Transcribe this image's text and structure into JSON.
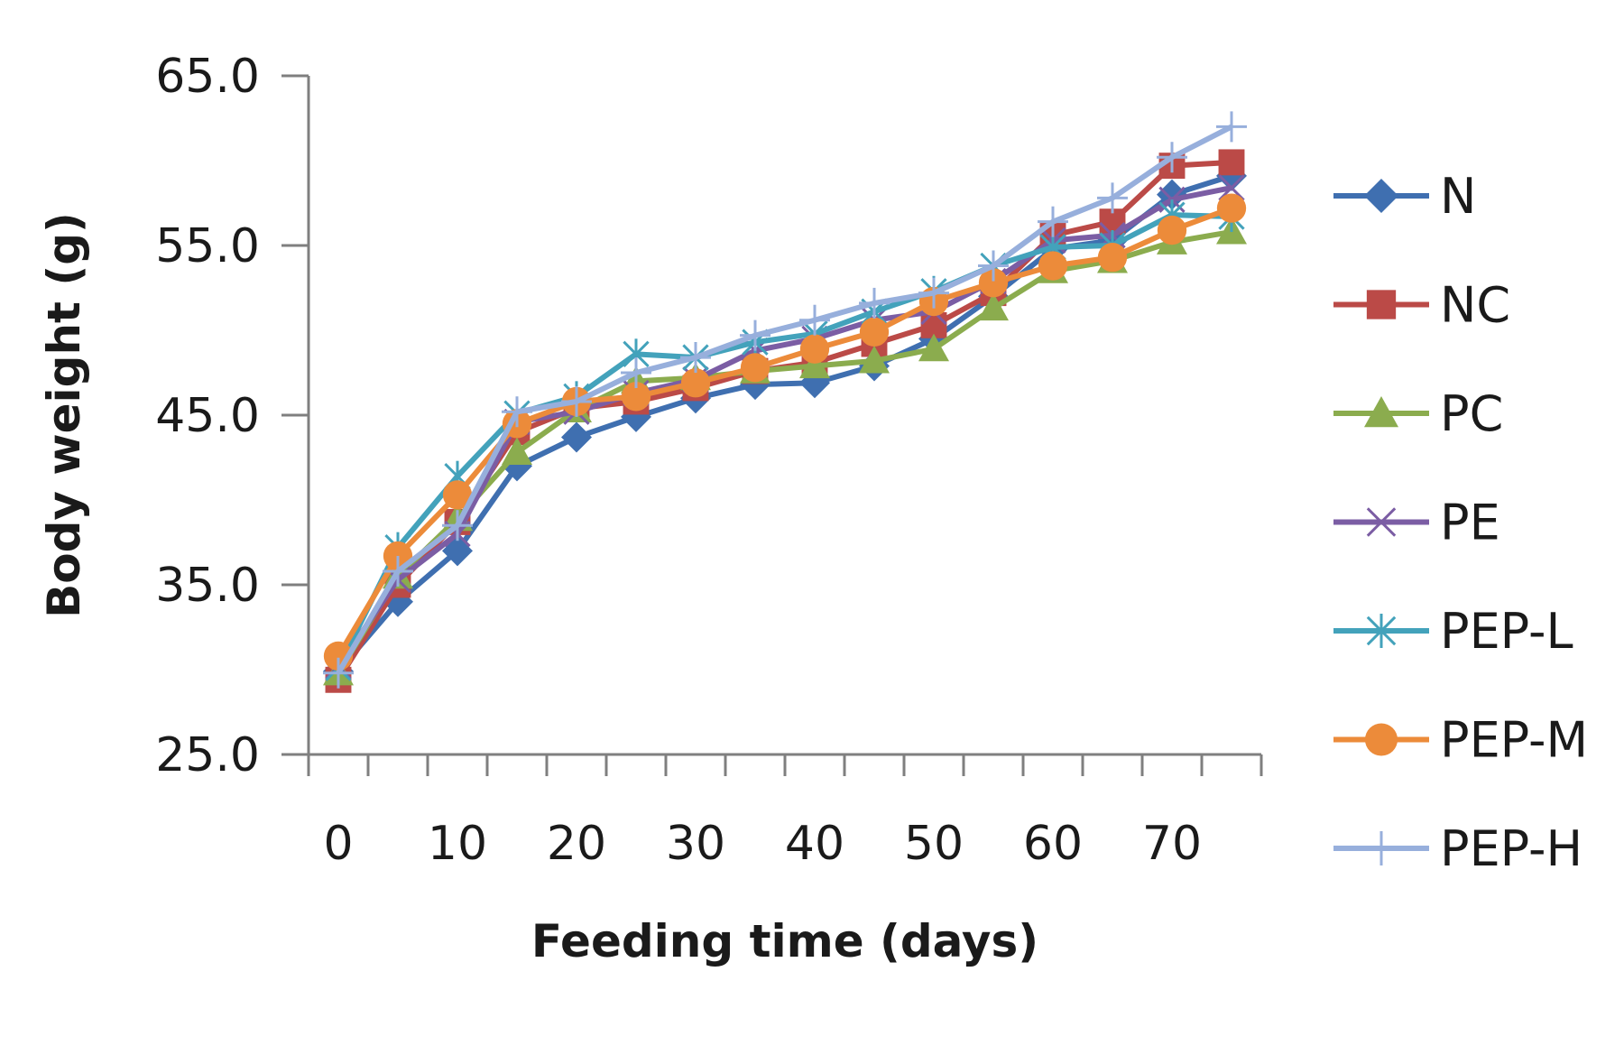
{
  "chart_data": {
    "type": "line",
    "title": "",
    "xlabel": "Feeding time (days)",
    "ylabel": "Body weight (g)",
    "xlim": [
      -2.5,
      77.5
    ],
    "ylim": [
      25.0,
      65.0
    ],
    "x_ticks": [
      "0",
      "10",
      "20",
      "30",
      "40",
      "50",
      "60",
      "70"
    ],
    "y_ticks": [
      "65.0",
      "55.0",
      "45.0",
      "35.0",
      "25.0"
    ],
    "grid": false,
    "legend_position": "right",
    "x": [
      0,
      5,
      10,
      15,
      20,
      25,
      30,
      35,
      40,
      45,
      50,
      55,
      60,
      65,
      70,
      75
    ],
    "series": [
      {
        "name": "N",
        "color": "#3f6fb0",
        "marker": "diamond",
        "values": [
          29.9,
          34.0,
          37.0,
          42.0,
          43.7,
          44.9,
          46.0,
          46.8,
          46.9,
          47.9,
          49.5,
          52.0,
          54.8,
          55.3,
          58.0,
          59.1
        ]
      },
      {
        "name": "NC",
        "color": "#bb4a47",
        "marker": "square",
        "values": [
          29.4,
          35.0,
          38.7,
          44.0,
          45.4,
          45.8,
          46.6,
          47.6,
          48.1,
          49.2,
          50.3,
          52.2,
          55.6,
          56.4,
          59.7,
          59.9
        ]
      },
      {
        "name": "PC",
        "color": "#8bac4e",
        "marker": "triangle",
        "values": [
          29.8,
          35.5,
          38.9,
          42.8,
          45.3,
          47.0,
          47.2,
          47.6,
          47.9,
          48.2,
          48.9,
          51.3,
          53.5,
          54.1,
          55.2,
          55.8
        ]
      },
      {
        "name": "PE",
        "color": "#7b5da4",
        "marker": "x",
        "values": [
          30.2,
          35.3,
          38.0,
          44.6,
          45.2,
          46.3,
          47.1,
          48.8,
          49.5,
          50.6,
          51.1,
          52.9,
          55.3,
          55.6,
          57.7,
          58.4
        ]
      },
      {
        "name": "PEP-L",
        "color": "#43a2bb",
        "marker": "star",
        "values": [
          30.1,
          37.2,
          41.4,
          45.1,
          46.1,
          48.6,
          48.4,
          49.3,
          49.8,
          51.1,
          52.3,
          53.8,
          54.9,
          55.0,
          56.8,
          56.7
        ]
      },
      {
        "name": "PEP-M",
        "color": "#ec8b3a",
        "marker": "circle",
        "values": [
          30.8,
          36.7,
          40.3,
          44.5,
          45.8,
          46.1,
          46.9,
          47.8,
          48.9,
          49.9,
          51.7,
          52.8,
          53.8,
          54.3,
          55.9,
          57.2
        ]
      },
      {
        "name": "PEP-H",
        "color": "#97afdc",
        "marker": "plus",
        "values": [
          29.8,
          35.8,
          38.5,
          45.2,
          45.8,
          47.5,
          48.4,
          49.7,
          50.6,
          51.6,
          52.2,
          53.8,
          56.4,
          57.8,
          60.2,
          62.0
        ]
      }
    ]
  }
}
